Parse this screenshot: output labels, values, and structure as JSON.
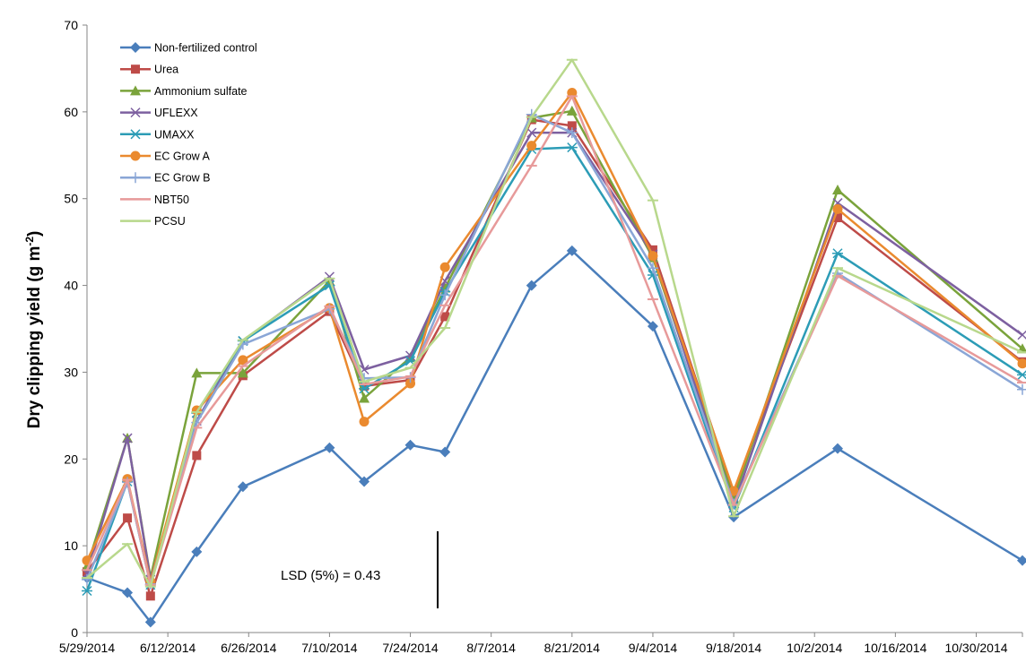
{
  "chart_data": {
    "type": "line",
    "ylabel": "Dry clipping yield (g m",
    "ylabel_sup": "-2",
    "ylabel_close": ")",
    "xlabel": "",
    "ylim": [
      0,
      70
    ],
    "yticks": [
      0,
      10,
      20,
      30,
      40,
      50,
      60,
      70
    ],
    "xlim": [
      "2014-05-29",
      "2014-11-07"
    ],
    "xticks": [
      "5/29/2014",
      "6/12/2014",
      "6/26/2014",
      "7/10/2014",
      "7/24/2014",
      "8/7/2014",
      "8/21/2014",
      "9/4/2014",
      "9/18/2014",
      "10/2/2014",
      "10/16/2014",
      "10/30/2014"
    ],
    "grid": false,
    "legend_position": "top-left",
    "annotation": "LSD (5%) = 0.43",
    "x": [
      "2014-05-29",
      "2014-06-05",
      "2014-06-09",
      "2014-06-17",
      "2014-06-25",
      "2014-07-10",
      "2014-07-16",
      "2014-07-24",
      "2014-07-30",
      "2014-08-14",
      "2014-08-21",
      "2014-09-04",
      "2014-09-18",
      "2014-10-06",
      "2014-11-07"
    ],
    "series": [
      {
        "name": "Non-fertilized control",
        "color": "#4a7ebb",
        "marker": "diamond",
        "values": [
          6.3,
          4.6,
          1.2,
          9.3,
          16.8,
          21.3,
          17.4,
          21.6,
          20.8,
          40.0,
          44.0,
          35.3,
          13.3,
          21.2,
          8.3
        ]
      },
      {
        "name": "Urea",
        "color": "#be4b48",
        "marker": "square",
        "values": [
          7.0,
          13.2,
          4.2,
          20.4,
          29.6,
          37.0,
          28.4,
          29.1,
          36.4,
          59.1,
          58.4,
          44.1,
          16.1,
          47.8,
          31.2
        ]
      },
      {
        "name": "Ammonium sulfate",
        "color": "#7aa33b",
        "marker": "triangle",
        "values": [
          7.6,
          22.4,
          6.3,
          29.9,
          29.9,
          40.5,
          27.0,
          31.7,
          39.7,
          59.3,
          60.1,
          43.2,
          15.4,
          51.0,
          32.7
        ]
      },
      {
        "name": "UFLEXX",
        "color": "#7d60a0",
        "marker": "x",
        "values": [
          6.8,
          22.4,
          6.1,
          24.4,
          33.6,
          41.0,
          30.3,
          31.9,
          40.5,
          57.6,
          57.6,
          43.6,
          14.7,
          49.5,
          34.3
        ]
      },
      {
        "name": "UMAXX",
        "color": "#2c9cb6",
        "marker": "asterisk",
        "values": [
          4.8,
          17.4,
          5.5,
          25.3,
          33.6,
          40.0,
          28.1,
          31.3,
          39.3,
          55.7,
          55.9,
          41.2,
          14.4,
          43.7,
          29.7
        ]
      },
      {
        "name": "EC Grow A",
        "color": "#ea8a2f",
        "marker": "circle",
        "values": [
          8.3,
          17.7,
          5.9,
          25.6,
          31.4,
          37.4,
          24.3,
          28.7,
          42.1,
          56.1,
          62.2,
          43.4,
          16.3,
          48.8,
          31.0
        ]
      },
      {
        "name": "EC Grow B",
        "color": "#8aa6d6",
        "marker": "plus",
        "values": [
          6.1,
          17.3,
          5.6,
          24.2,
          33.2,
          37.3,
          29.3,
          29.4,
          38.9,
          59.7,
          57.6,
          42.0,
          14.8,
          41.4,
          28.0
        ]
      },
      {
        "name": "NBT50",
        "color": "#e79a9a",
        "marker": "dash",
        "values": [
          7.2,
          17.6,
          5.5,
          23.6,
          30.7,
          37.6,
          28.6,
          29.5,
          37.7,
          53.8,
          61.8,
          38.4,
          14.7,
          41.1,
          28.8
        ]
      },
      {
        "name": "PCSU",
        "color": "#b8d88c",
        "marker": "dash",
        "values": [
          6.3,
          10.2,
          5.3,
          25.4,
          33.7,
          40.8,
          28.9,
          30.5,
          35.1,
          59.4,
          66.0,
          49.8,
          13.4,
          42.0,
          32.3
        ]
      }
    ]
  }
}
